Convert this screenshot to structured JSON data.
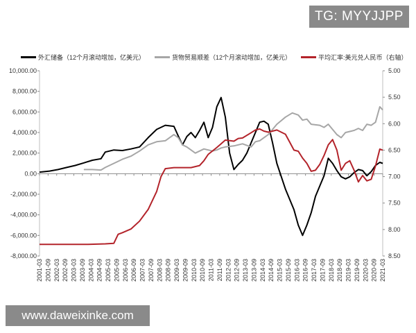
{
  "watermarks": {
    "top": "TG: MYYJJPP",
    "bottom": "www.daweixinke.com"
  },
  "chart_data": {
    "type": "line",
    "left_axis": {
      "range": [
        -8000,
        10000
      ],
      "ticks": [
        "10,000.00",
        "8,000.00",
        "6,000.00",
        "4,000.00",
        "2,000.00",
        "0.00",
        "-2,000.00",
        "-4,000.00",
        "-6,000.00",
        "-8,000.00"
      ]
    },
    "right_axis": {
      "range": [
        5.0,
        8.5
      ],
      "inverted": true,
      "ticks": [
        "5.00",
        "5.50",
        "6.00",
        "6.50",
        "7.00",
        "7.50",
        "8.00",
        "8.50"
      ]
    },
    "x_ticks": [
      "2001-03",
      "2001-09",
      "2002-03",
      "2002-09",
      "2003-03",
      "2003-09",
      "2004-03",
      "2004-09",
      "2005-03",
      "2005-09",
      "2006-03",
      "2006-09",
      "2007-03",
      "2007-09",
      "2008-03",
      "2008-09",
      "2009-03",
      "2009-09",
      "2010-03",
      "2010-09",
      "2011-03",
      "2011-09",
      "2012-03",
      "2012-09",
      "2013-03",
      "2013-09",
      "2014-03",
      "2014-09",
      "2015-03",
      "2015-09",
      "2016-03",
      "2016-09",
      "2017-03",
      "2017-09",
      "2018-03",
      "2018-09",
      "2019-03",
      "2019-09",
      "2020-03",
      "2020-09",
      "2021-03"
    ],
    "series": [
      {
        "name": "外汇储备（12个月滚动增加，亿美元）",
        "axis": "left",
        "color": "#000000",
        "points": [
          [
            2001.17,
            150
          ],
          [
            2001.75,
            250
          ],
          [
            2002.25,
            400
          ],
          [
            2002.75,
            600
          ],
          [
            2003.25,
            800
          ],
          [
            2003.75,
            1050
          ],
          [
            2004.25,
            1300
          ],
          [
            2004.75,
            1450
          ],
          [
            2005.0,
            2100
          ],
          [
            2005.5,
            2300
          ],
          [
            2006.0,
            2250
          ],
          [
            2006.5,
            2400
          ],
          [
            2007.0,
            2600
          ],
          [
            2007.5,
            3500
          ],
          [
            2008.0,
            4300
          ],
          [
            2008.5,
            4700
          ],
          [
            2009.0,
            4600
          ],
          [
            2009.3,
            3500
          ],
          [
            2009.5,
            2800
          ],
          [
            2009.75,
            3600
          ],
          [
            2010.0,
            4000
          ],
          [
            2010.25,
            3500
          ],
          [
            2010.5,
            4200
          ],
          [
            2010.75,
            5000
          ],
          [
            2011.0,
            3500
          ],
          [
            2011.25,
            4500
          ],
          [
            2011.5,
            6500
          ],
          [
            2011.75,
            7400
          ],
          [
            2012.0,
            5500
          ],
          [
            2012.25,
            2000
          ],
          [
            2012.5,
            400
          ],
          [
            2012.75,
            900
          ],
          [
            2013.0,
            1300
          ],
          [
            2013.25,
            2000
          ],
          [
            2013.5,
            3000
          ],
          [
            2013.75,
            4000
          ],
          [
            2014.0,
            5000
          ],
          [
            2014.25,
            5100
          ],
          [
            2014.5,
            4800
          ],
          [
            2014.75,
            3000
          ],
          [
            2015.0,
            1000
          ],
          [
            2015.5,
            -1500
          ],
          [
            2016.0,
            -3500
          ],
          [
            2016.25,
            -5000
          ],
          [
            2016.5,
            -6000
          ],
          [
            2016.75,
            -5000
          ],
          [
            2017.0,
            -3800
          ],
          [
            2017.25,
            -2200
          ],
          [
            2017.5,
            -1200
          ],
          [
            2017.75,
            -200
          ],
          [
            2018.0,
            1500
          ],
          [
            2018.25,
            1000
          ],
          [
            2018.5,
            300
          ],
          [
            2018.75,
            -300
          ],
          [
            2019.0,
            -500
          ],
          [
            2019.25,
            -300
          ],
          [
            2019.5,
            100
          ],
          [
            2019.75,
            400
          ],
          [
            2020.0,
            300
          ],
          [
            2020.25,
            -200
          ],
          [
            2020.5,
            200
          ],
          [
            2020.75,
            800
          ],
          [
            2021.0,
            1100
          ],
          [
            2021.17,
            1000
          ]
        ]
      },
      {
        "name": "货物贸易顺差（12个月滚动增加，亿美元）",
        "axis": "left",
        "color": "#a6a6a6",
        "points": [
          [
            2003.75,
            400
          ],
          [
            2004.25,
            400
          ],
          [
            2004.75,
            350
          ],
          [
            2005.0,
            600
          ],
          [
            2005.5,
            1000
          ],
          [
            2006.0,
            1400
          ],
          [
            2006.5,
            1700
          ],
          [
            2007.0,
            2200
          ],
          [
            2007.5,
            2800
          ],
          [
            2008.0,
            3100
          ],
          [
            2008.5,
            3200
          ],
          [
            2008.75,
            3500
          ],
          [
            2009.0,
            3800
          ],
          [
            2009.25,
            3500
          ],
          [
            2009.5,
            2800
          ],
          [
            2009.75,
            2600
          ],
          [
            2010.0,
            2300
          ],
          [
            2010.25,
            2000
          ],
          [
            2010.5,
            2200
          ],
          [
            2010.75,
            2400
          ],
          [
            2011.0,
            2300
          ],
          [
            2011.25,
            2200
          ],
          [
            2011.5,
            2300
          ],
          [
            2011.75,
            2500
          ],
          [
            2012.0,
            2600
          ],
          [
            2012.5,
            2700
          ],
          [
            2013.0,
            2900
          ],
          [
            2013.5,
            2600
          ],
          [
            2013.75,
            3100
          ],
          [
            2014.0,
            3200
          ],
          [
            2014.5,
            3800
          ],
          [
            2015.0,
            4800
          ],
          [
            2015.5,
            5500
          ],
          [
            2015.9,
            5900
          ],
          [
            2016.25,
            5700
          ],
          [
            2016.5,
            5200
          ],
          [
            2016.75,
            5300
          ],
          [
            2017.0,
            4800
          ],
          [
            2017.5,
            4700
          ],
          [
            2017.75,
            4500
          ],
          [
            2018.0,
            4800
          ],
          [
            2018.5,
            3800
          ],
          [
            2018.75,
            3500
          ],
          [
            2019.0,
            4000
          ],
          [
            2019.5,
            4200
          ],
          [
            2019.75,
            4400
          ],
          [
            2020.0,
            4200
          ],
          [
            2020.25,
            4800
          ],
          [
            2020.5,
            4700
          ],
          [
            2020.75,
            5000
          ],
          [
            2021.0,
            6500
          ],
          [
            2021.17,
            6200
          ]
        ]
      },
      {
        "name": "平均汇率:美元兑人民币（右轴）",
        "axis": "right",
        "color": "#b3232a",
        "points": [
          [
            2001.17,
            8.28
          ],
          [
            2002.0,
            8.28
          ],
          [
            2003.0,
            8.28
          ],
          [
            2004.0,
            8.28
          ],
          [
            2005.0,
            8.27
          ],
          [
            2005.5,
            8.26
          ],
          [
            2005.75,
            8.09
          ],
          [
            2006.0,
            8.06
          ],
          [
            2006.5,
            7.99
          ],
          [
            2007.0,
            7.84
          ],
          [
            2007.5,
            7.62
          ],
          [
            2008.0,
            7.28
          ],
          [
            2008.25,
            7.0
          ],
          [
            2008.5,
            6.85
          ],
          [
            2008.75,
            6.84
          ],
          [
            2009.0,
            6.83
          ],
          [
            2009.5,
            6.83
          ],
          [
            2010.0,
            6.83
          ],
          [
            2010.5,
            6.79
          ],
          [
            2010.75,
            6.7
          ],
          [
            2011.0,
            6.58
          ],
          [
            2011.5,
            6.45
          ],
          [
            2011.75,
            6.38
          ],
          [
            2012.0,
            6.31
          ],
          [
            2012.5,
            6.33
          ],
          [
            2012.75,
            6.28
          ],
          [
            2013.0,
            6.27
          ],
          [
            2013.5,
            6.17
          ],
          [
            2013.75,
            6.12
          ],
          [
            2014.0,
            6.1
          ],
          [
            2014.25,
            6.14
          ],
          [
            2014.5,
            6.16
          ],
          [
            2014.75,
            6.14
          ],
          [
            2015.0,
            6.12
          ],
          [
            2015.5,
            6.2
          ],
          [
            2015.75,
            6.35
          ],
          [
            2016.0,
            6.5
          ],
          [
            2016.25,
            6.52
          ],
          [
            2016.5,
            6.65
          ],
          [
            2016.75,
            6.75
          ],
          [
            2017.0,
            6.9
          ],
          [
            2017.25,
            6.88
          ],
          [
            2017.5,
            6.77
          ],
          [
            2017.75,
            6.6
          ],
          [
            2018.0,
            6.4
          ],
          [
            2018.25,
            6.3
          ],
          [
            2018.5,
            6.5
          ],
          [
            2018.75,
            6.88
          ],
          [
            2019.0,
            6.75
          ],
          [
            2019.25,
            6.7
          ],
          [
            2019.5,
            6.88
          ],
          [
            2019.75,
            7.1
          ],
          [
            2020.0,
            6.98
          ],
          [
            2020.25,
            7.08
          ],
          [
            2020.5,
            7.05
          ],
          [
            2020.75,
            6.8
          ],
          [
            2021.0,
            6.48
          ],
          [
            2021.17,
            6.5
          ]
        ]
      }
    ]
  }
}
